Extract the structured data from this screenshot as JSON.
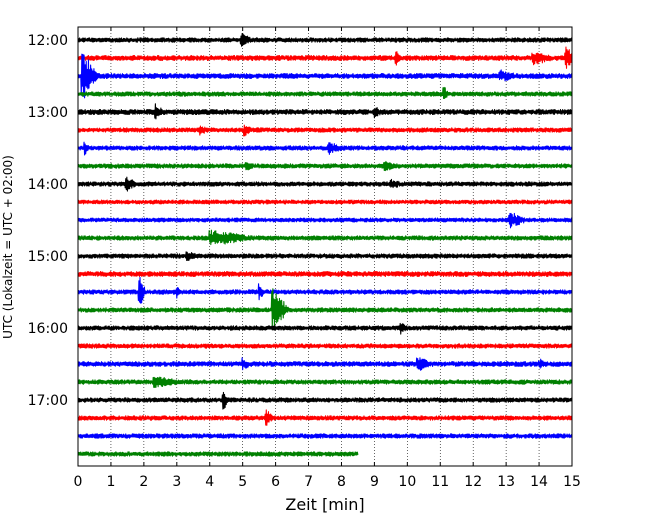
{
  "chart_data": {
    "type": "line",
    "subtype": "helicorder",
    "xlabel": "Zeit  [min]",
    "ylabel": "UTC (Lokalzeit = UTC + 02:00)",
    "xlim": [
      0,
      15
    ],
    "x_ticks": [
      0,
      1,
      2,
      3,
      4,
      5,
      6,
      7,
      8,
      9,
      10,
      11,
      12,
      13,
      14,
      15
    ],
    "x_grid": "dotted vertical lines at every minute",
    "y_ticks": [
      "12:00",
      "13:00",
      "14:00",
      "15:00",
      "16:00",
      "17:00"
    ],
    "trace_interval_min": 15,
    "color_cycle": [
      "#000000",
      "#ff0000",
      "#0000ff",
      "#008000"
    ],
    "traces": [
      {
        "start": "12:00",
        "color": "#000000",
        "end_min": 15,
        "amp": 2.2,
        "events": [
          {
            "t": 4.95,
            "amp": 5,
            "dur": 0.3
          }
        ]
      },
      {
        "start": "12:15",
        "color": "#ff0000",
        "end_min": 15,
        "amp": 2.5,
        "events": [
          {
            "t": 9.65,
            "amp": 9,
            "dur": 0.15
          },
          {
            "t": 14.8,
            "amp": 9,
            "dur": 0.35
          },
          {
            "t": 13.8,
            "amp": 5,
            "dur": 0.6
          }
        ]
      },
      {
        "start": "12:30",
        "color": "#0000ff",
        "end_min": 15,
        "amp": 2.5,
        "events": [
          {
            "t": 0.12,
            "amp": 24,
            "dur": 0.5
          },
          {
            "t": 12.8,
            "amp": 4,
            "dur": 0.5
          }
        ]
      },
      {
        "start": "12:45",
        "color": "#008000",
        "end_min": 15,
        "amp": 2.2,
        "events": [
          {
            "t": 11.1,
            "amp": 6,
            "dur": 0.15
          }
        ]
      },
      {
        "start": "13:00",
        "color": "#000000",
        "end_min": 15,
        "amp": 2.5,
        "events": [
          {
            "t": 2.35,
            "amp": 6,
            "dur": 0.25
          },
          {
            "t": 9.0,
            "amp": 4,
            "dur": 0.2
          }
        ]
      },
      {
        "start": "13:15",
        "color": "#ff0000",
        "end_min": 15,
        "amp": 2.2,
        "events": [
          {
            "t": 5.05,
            "amp": 5,
            "dur": 0.2
          },
          {
            "t": 3.7,
            "amp": 3,
            "dur": 0.2
          }
        ]
      },
      {
        "start": "13:30",
        "color": "#0000ff",
        "end_min": 15,
        "amp": 2.2,
        "events": [
          {
            "t": 0.2,
            "amp": 6,
            "dur": 0.15
          },
          {
            "t": 7.6,
            "amp": 5,
            "dur": 0.4
          }
        ]
      },
      {
        "start": "13:45",
        "color": "#008000",
        "end_min": 15,
        "amp": 2.2,
        "events": [
          {
            "t": 9.3,
            "amp": 4,
            "dur": 0.3
          },
          {
            "t": 5.1,
            "amp": 3,
            "dur": 0.2
          }
        ]
      },
      {
        "start": "14:00",
        "color": "#000000",
        "end_min": 15,
        "amp": 2.2,
        "events": [
          {
            "t": 1.45,
            "amp": 6,
            "dur": 0.3
          },
          {
            "t": 9.5,
            "amp": 3,
            "dur": 0.3
          }
        ]
      },
      {
        "start": "14:15",
        "color": "#ff0000",
        "end_min": 15,
        "amp": 2.0,
        "events": []
      },
      {
        "start": "14:30",
        "color": "#0000ff",
        "end_min": 15,
        "amp": 2.0,
        "events": [
          {
            "t": 13.1,
            "amp": 7,
            "dur": 0.5
          }
        ]
      },
      {
        "start": "14:45",
        "color": "#008000",
        "end_min": 15,
        "amp": 2.2,
        "events": [
          {
            "t": 4.0,
            "amp": 6,
            "dur": 1.3
          }
        ]
      },
      {
        "start": "15:00",
        "color": "#000000",
        "end_min": 15,
        "amp": 2.2,
        "events": [
          {
            "t": 3.3,
            "amp": 4,
            "dur": 0.3
          }
        ]
      },
      {
        "start": "15:15",
        "color": "#ff0000",
        "end_min": 15,
        "amp": 2.5,
        "events": []
      },
      {
        "start": "15:30",
        "color": "#0000ff",
        "end_min": 15,
        "amp": 2.2,
        "events": [
          {
            "t": 1.85,
            "amp": 18,
            "dur": 0.2
          },
          {
            "t": 5.5,
            "amp": 8,
            "dur": 0.15
          },
          {
            "t": 3.0,
            "amp": 4,
            "dur": 0.1
          }
        ]
      },
      {
        "start": "15:45",
        "color": "#008000",
        "end_min": 15,
        "amp": 2.2,
        "events": [
          {
            "t": 5.9,
            "amp": 22,
            "dur": 0.5
          }
        ]
      },
      {
        "start": "16:00",
        "color": "#000000",
        "end_min": 15,
        "amp": 2.2,
        "events": [
          {
            "t": 9.8,
            "amp": 4,
            "dur": 0.2
          }
        ]
      },
      {
        "start": "16:15",
        "color": "#ff0000",
        "end_min": 15,
        "amp": 2.2,
        "events": []
      },
      {
        "start": "16:30",
        "color": "#0000ff",
        "end_min": 15,
        "amp": 2.4,
        "events": [
          {
            "t": 10.3,
            "amp": 6,
            "dur": 0.4
          },
          {
            "t": 5.0,
            "amp": 4,
            "dur": 0.2
          },
          {
            "t": 14.0,
            "amp": 4,
            "dur": 0.2
          }
        ]
      },
      {
        "start": "16:45",
        "color": "#008000",
        "end_min": 15,
        "amp": 2.2,
        "events": [
          {
            "t": 2.3,
            "amp": 4,
            "dur": 0.8
          }
        ]
      },
      {
        "start": "17:00",
        "color": "#000000",
        "end_min": 15,
        "amp": 2.2,
        "events": [
          {
            "t": 4.4,
            "amp": 10,
            "dur": 0.15
          }
        ]
      },
      {
        "start": "17:15",
        "color": "#ff0000",
        "end_min": 15,
        "amp": 2.2,
        "events": [
          {
            "t": 5.7,
            "amp": 8,
            "dur": 0.2
          }
        ]
      },
      {
        "start": "17:30",
        "color": "#0000ff",
        "end_min": 15,
        "amp": 2.2,
        "events": []
      },
      {
        "start": "17:45",
        "color": "#008000",
        "end_min": 8.5,
        "amp": 2.2,
        "events": []
      }
    ]
  }
}
